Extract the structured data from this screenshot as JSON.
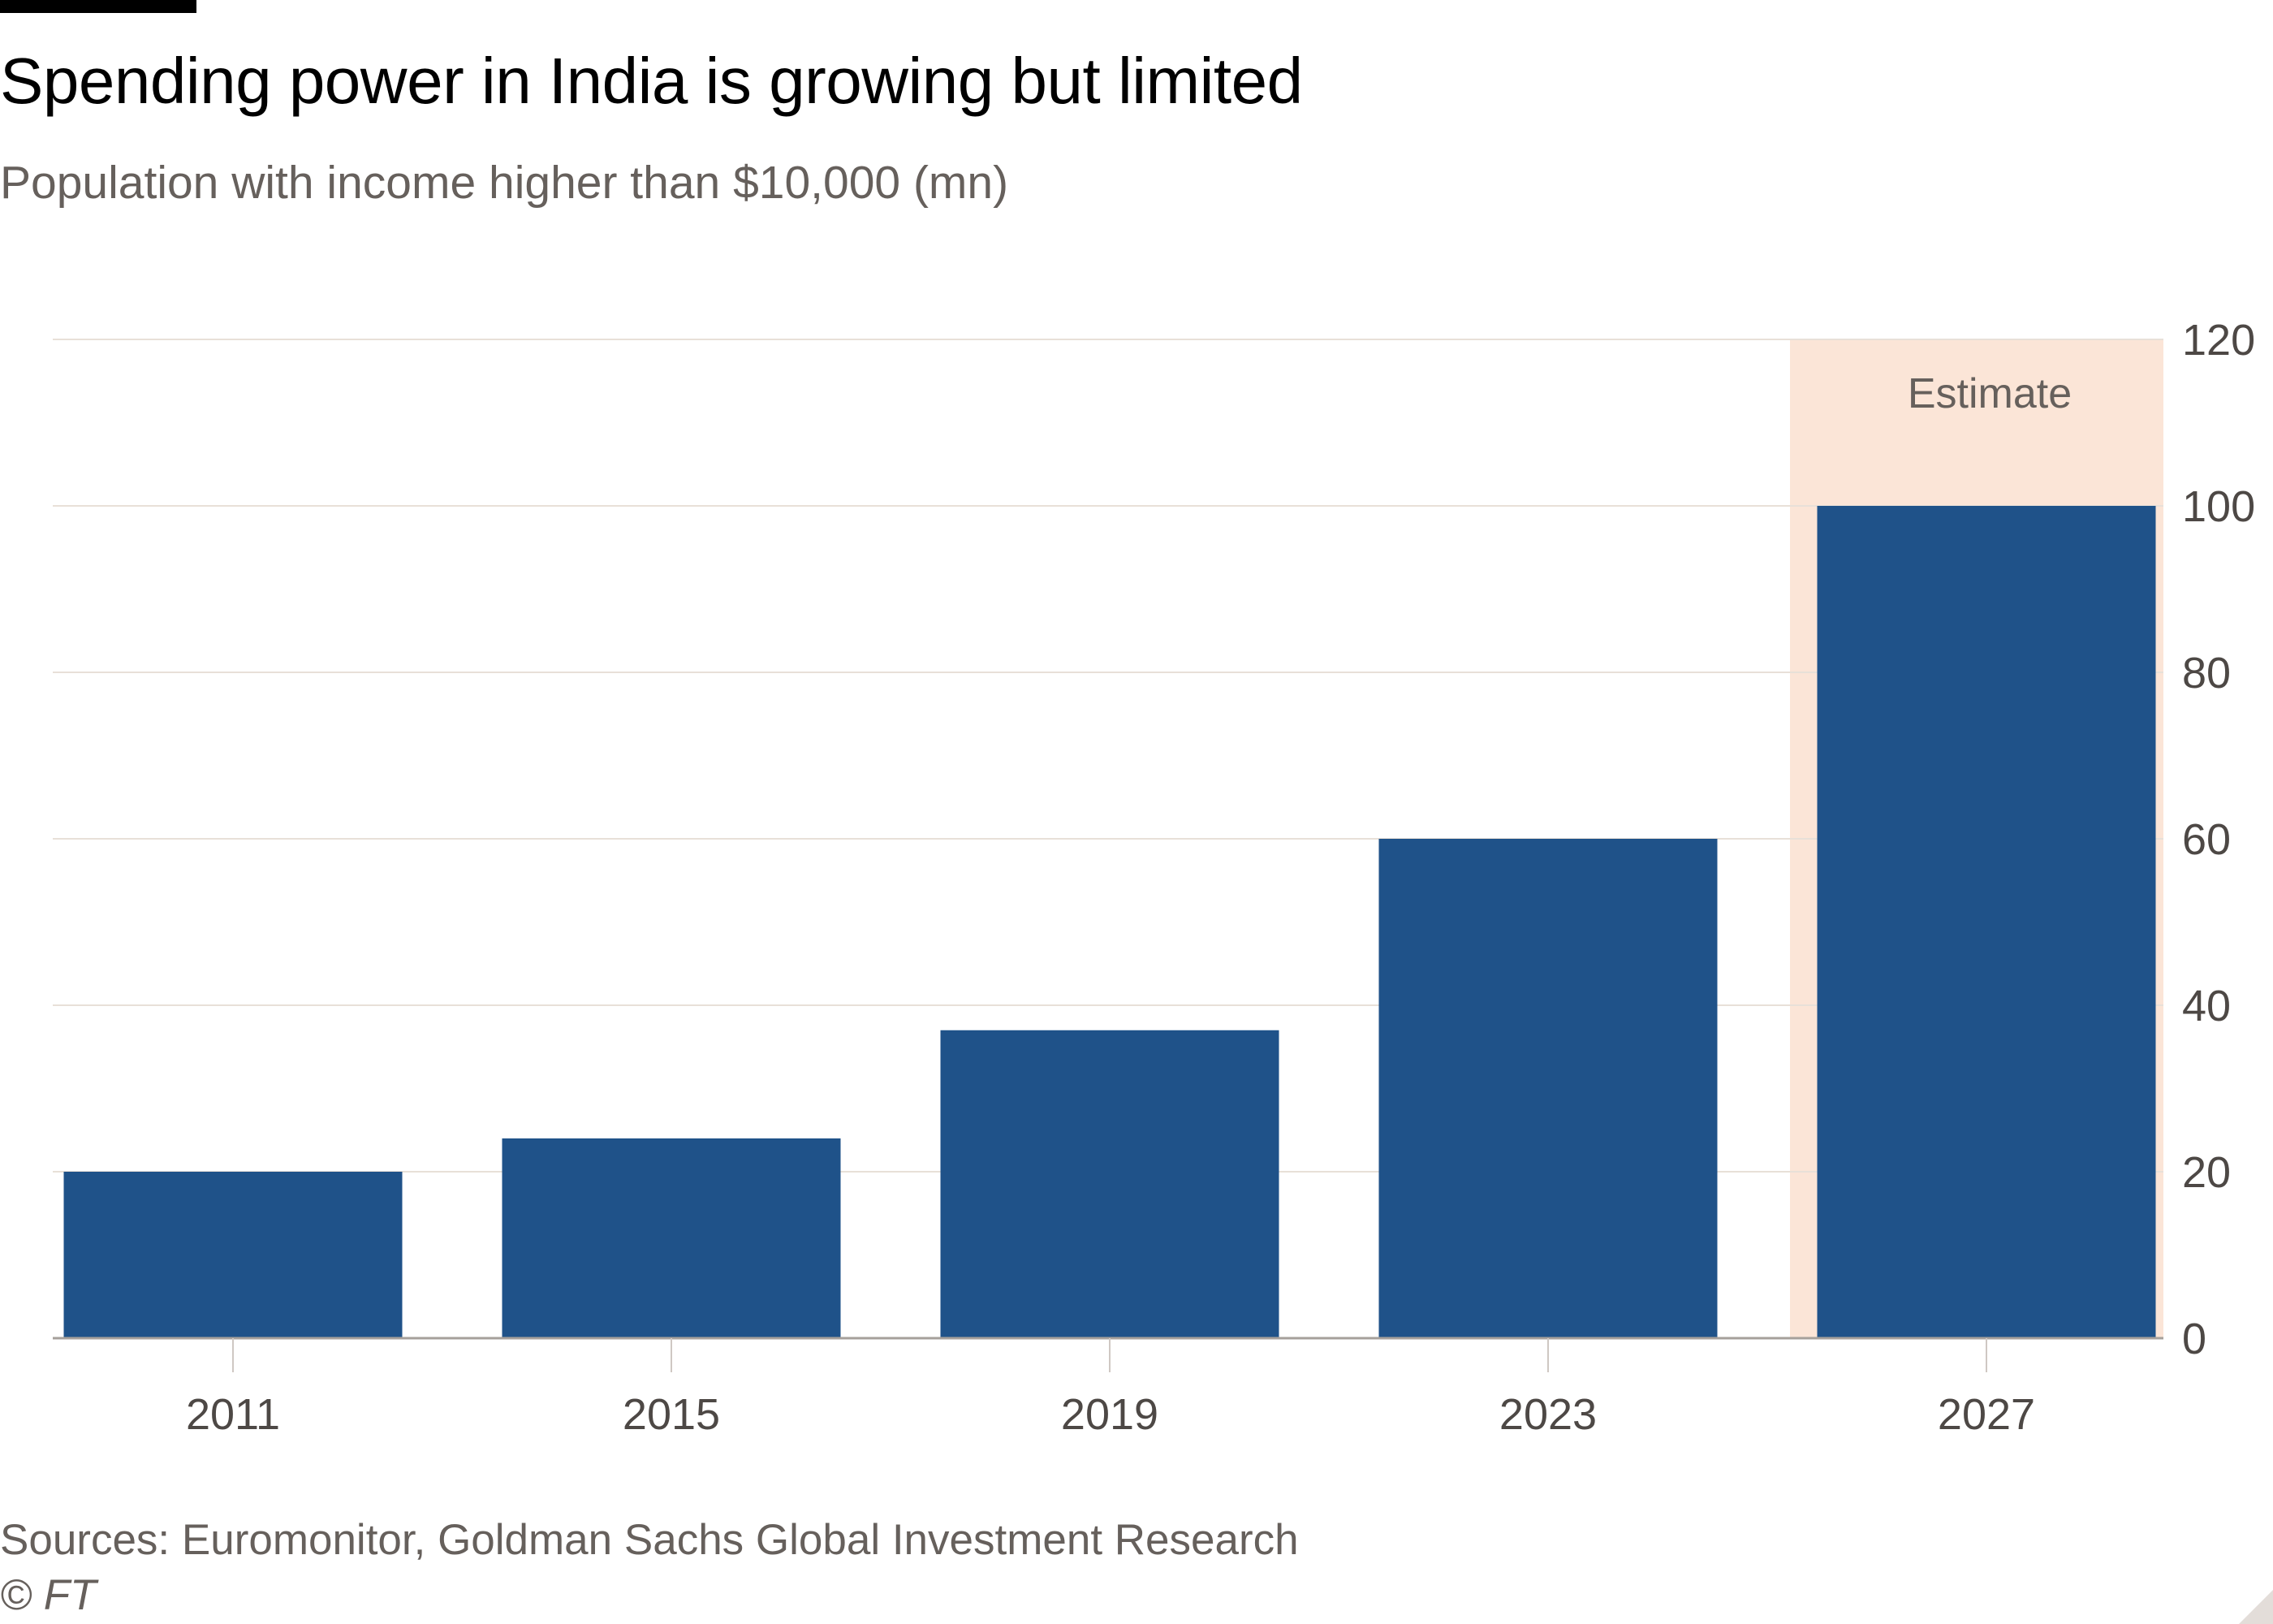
{
  "header": {
    "title": "Spending power in India is growing but limited",
    "subtitle": "Population with income higher than $10,000 (mn)"
  },
  "footer": {
    "source": "Sources: Euromonitor, Goldman Sachs Global Investment Research",
    "copyright": "© FT"
  },
  "colors": {
    "bar": "#1f5289",
    "estimate_band": "#fbe5d7",
    "gridline": "#e8e0d8",
    "axis_text": "#4d4845",
    "annotation_text": "#66605c"
  },
  "chart_data": {
    "type": "bar",
    "title": "Spending power in India is growing but limited",
    "subtitle": "Population with income higher than $10,000 (mn)",
    "categories": [
      "2011",
      "2015",
      "2019",
      "2023",
      "2027"
    ],
    "values": [
      20,
      24,
      37,
      60,
      100
    ],
    "ylim": [
      0,
      120
    ],
    "yticks": [
      0,
      20,
      40,
      60,
      80,
      100,
      120
    ],
    "y_axis_side": "right",
    "grid": true,
    "estimate_categories": [
      "2027"
    ],
    "annotation": "Estimate"
  }
}
